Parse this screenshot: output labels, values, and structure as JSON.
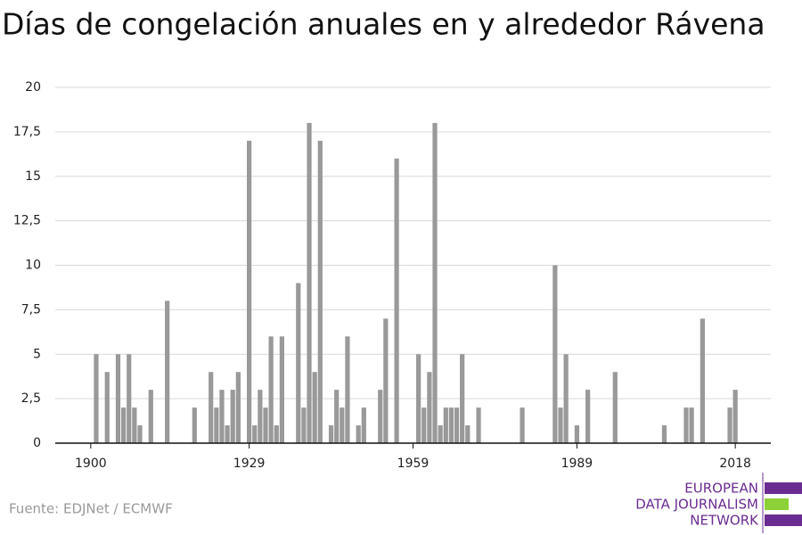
{
  "chart_data": {
    "type": "bar",
    "title": "Días de congelación anuales en y alrededor Rávena",
    "source": "Fuente: EDJNet / ECMWF",
    "logo": [
      "EUROPEAN",
      "DATA JOURNALISM",
      "NETWORK"
    ],
    "color": "#999999",
    "x": [
      1900,
      1901,
      1902,
      1903,
      1904,
      1905,
      1906,
      1907,
      1908,
      1909,
      1910,
      1911,
      1912,
      1913,
      1914,
      1915,
      1916,
      1917,
      1918,
      1919,
      1920,
      1921,
      1922,
      1923,
      1924,
      1925,
      1926,
      1927,
      1928,
      1929,
      1930,
      1931,
      1932,
      1933,
      1934,
      1935,
      1936,
      1937,
      1938,
      1939,
      1940,
      1941,
      1942,
      1943,
      1944,
      1945,
      1946,
      1947,
      1948,
      1949,
      1950,
      1951,
      1952,
      1953,
      1954,
      1955,
      1956,
      1957,
      1958,
      1959,
      1960,
      1961,
      1962,
      1963,
      1964,
      1965,
      1966,
      1967,
      1968,
      1969,
      1970,
      1971,
      1972,
      1973,
      1974,
      1975,
      1976,
      1977,
      1978,
      1979,
      1980,
      1981,
      1982,
      1983,
      1984,
      1985,
      1986,
      1987,
      1988,
      1989,
      1990,
      1991,
      1992,
      1993,
      1994,
      1995,
      1996,
      1997,
      1998,
      1999,
      2000,
      2001,
      2002,
      2003,
      2004,
      2005,
      2006,
      2007,
      2008,
      2009,
      2010,
      2011,
      2012,
      2013,
      2014,
      2015,
      2016,
      2017,
      2018
    ],
    "values": [
      0,
      5,
      0,
      4,
      0,
      5,
      2,
      5,
      2,
      1,
      0,
      3,
      0,
      0,
      8,
      0,
      0,
      0,
      0,
      2,
      0,
      0,
      4,
      2,
      3,
      1,
      3,
      4,
      0,
      17,
      1,
      3,
      2,
      6,
      1,
      6,
      0,
      0,
      9,
      2,
      18,
      4,
      17,
      0,
      1,
      3,
      2,
      6,
      0,
      1,
      2,
      0,
      0,
      3,
      7,
      0,
      16,
      0,
      0,
      0,
      5,
      2,
      4,
      18,
      1,
      2,
      2,
      2,
      5,
      1,
      0,
      2,
      0,
      0,
      0,
      0,
      0,
      0,
      0,
      2,
      0,
      0,
      0,
      0,
      0,
      10,
      2,
      5,
      0,
      1,
      0,
      3,
      0,
      0,
      0,
      0,
      4,
      0,
      0,
      0,
      0,
      0,
      0,
      0,
      0,
      1,
      0,
      0,
      0,
      2,
      2,
      0,
      7,
      0,
      0,
      0,
      0,
      2,
      3
    ],
    "xlim": [
      1893.5,
      2024.5
    ],
    "xticks": [
      1900,
      1929,
      1959,
      1989,
      2018
    ],
    "ylim": [
      0,
      20
    ],
    "yticks": [
      0,
      {
        "value": 2.5,
        "label": "2,5"
      },
      5,
      {
        "value": 7.5,
        "label": "7,5"
      },
      10,
      {
        "value": 12.5,
        "label": "12,5"
      },
      15,
      {
        "value": 17.5,
        "label": "17,5"
      },
      20
    ],
    "grid": true
  }
}
